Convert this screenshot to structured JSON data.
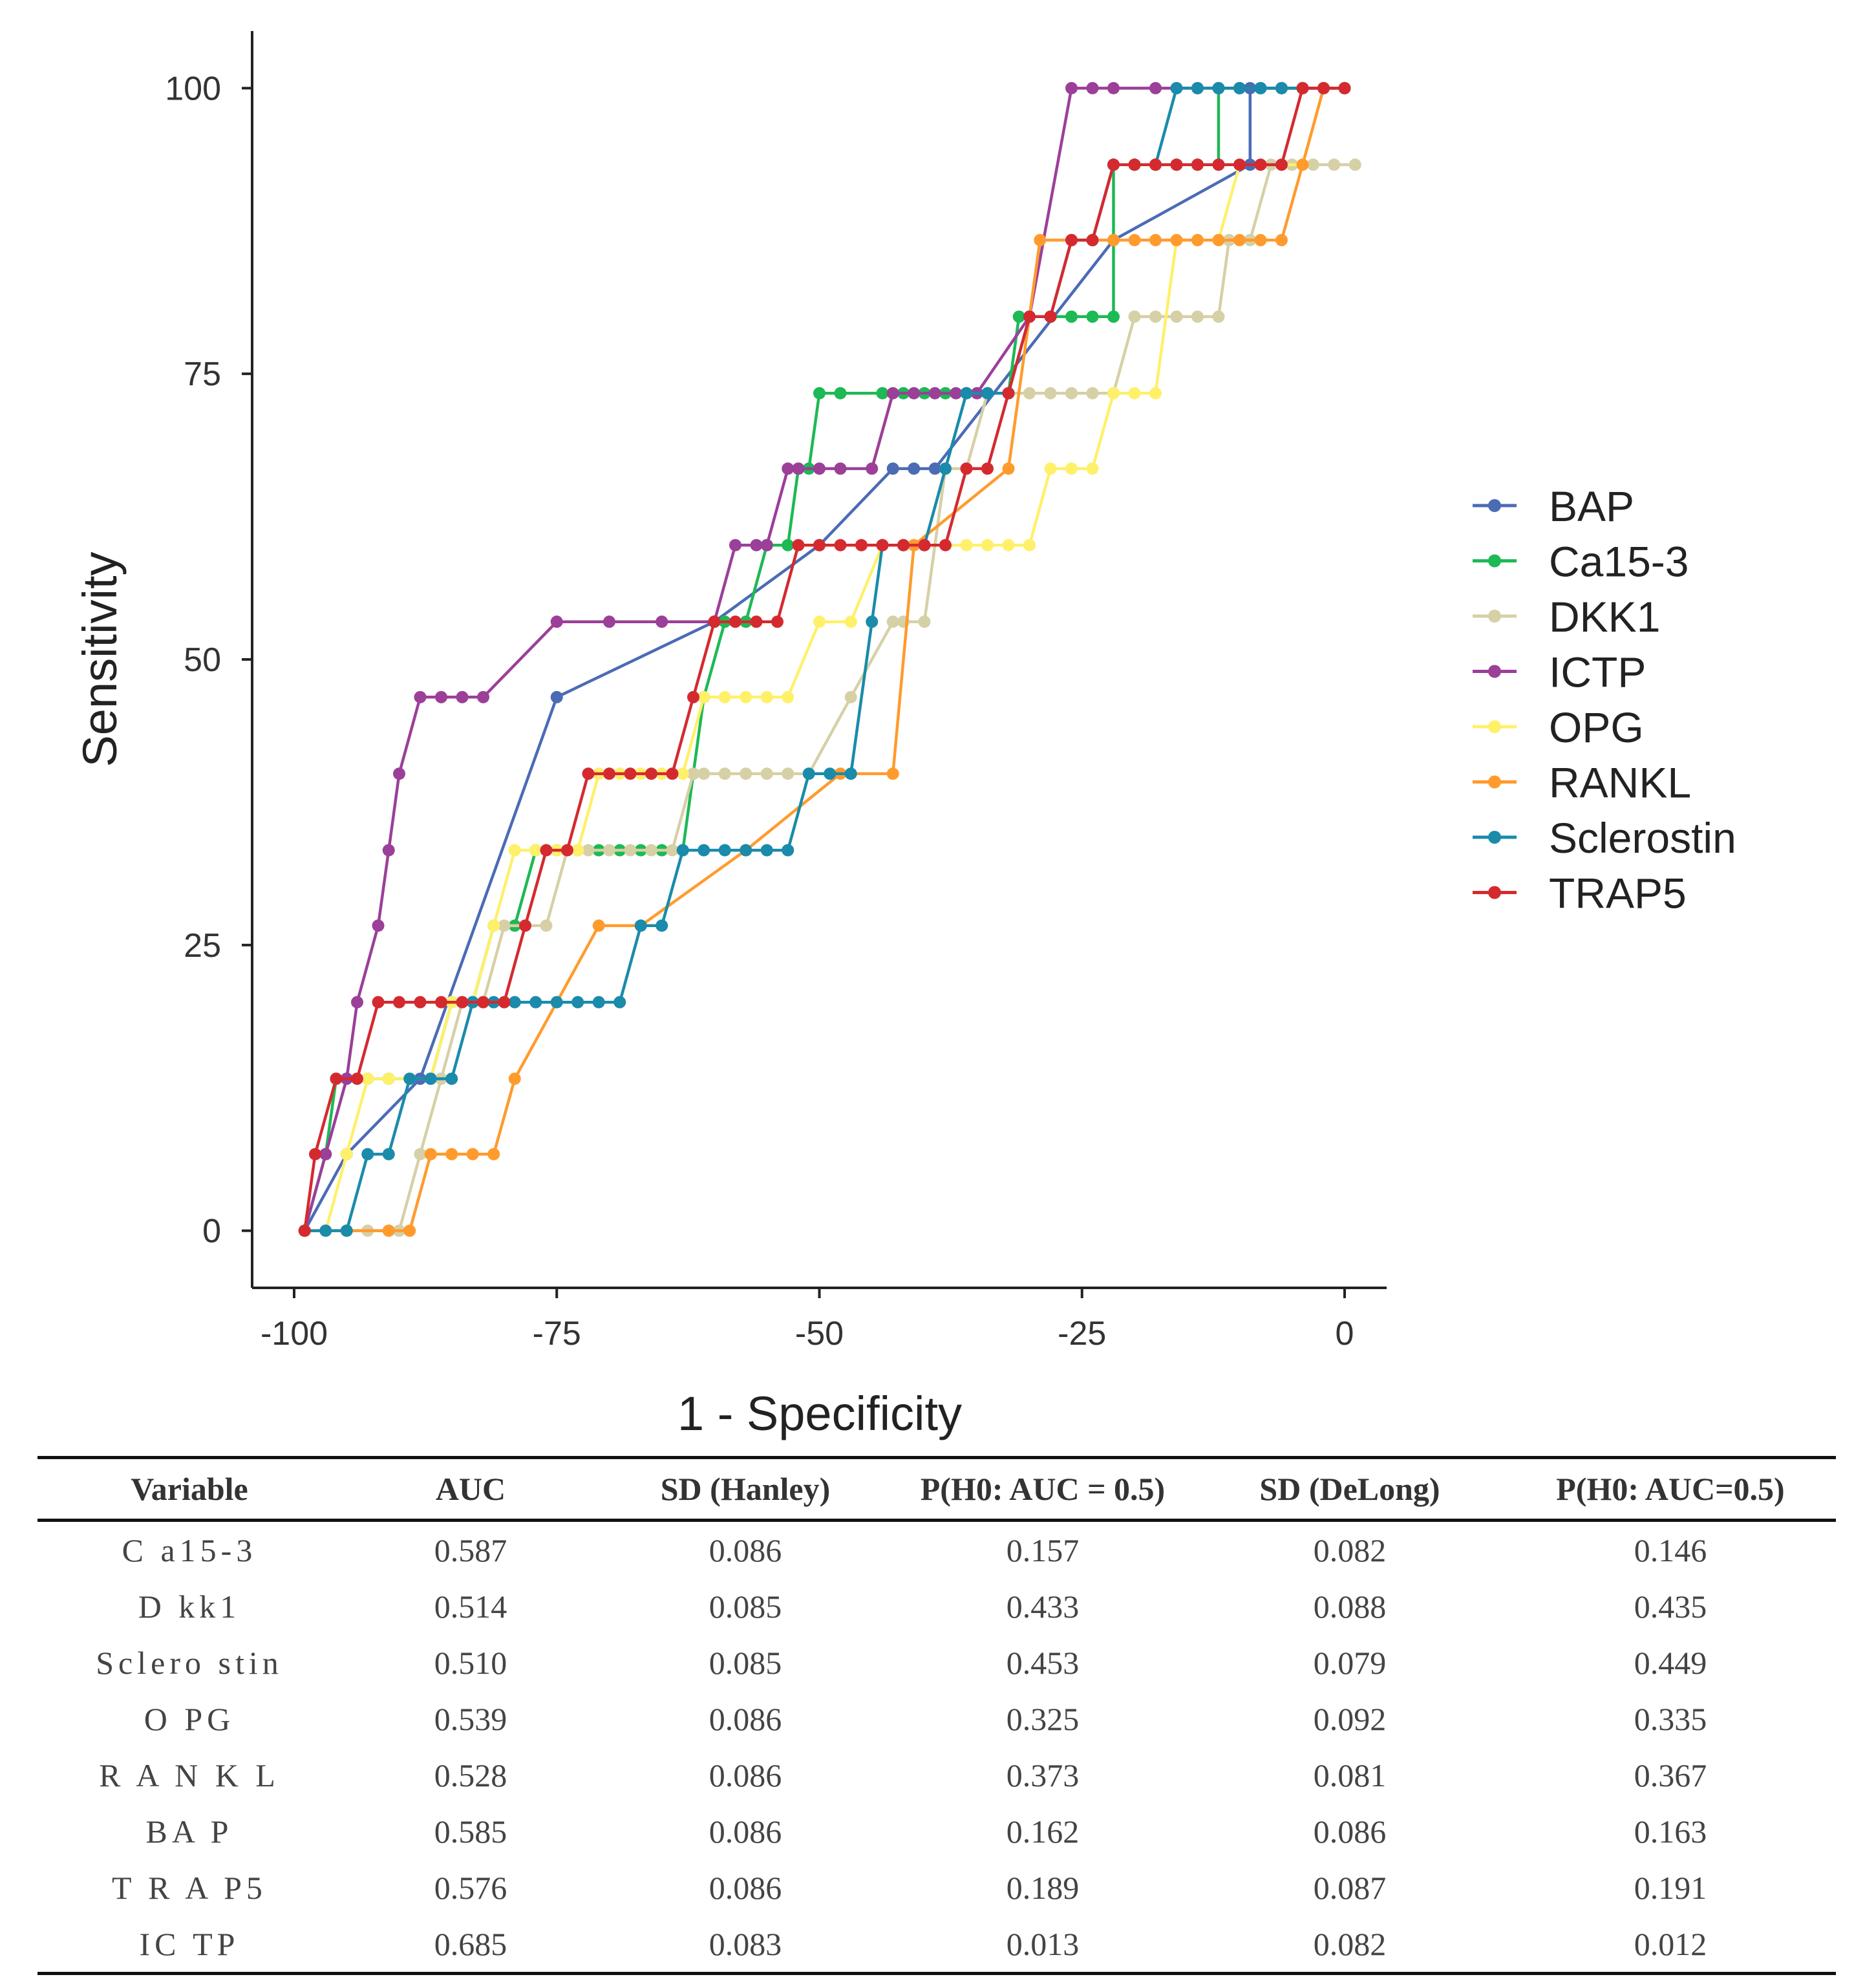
{
  "chart_data": {
    "type": "line",
    "title": "",
    "xlabel": "1 - Specificity",
    "ylabel": "Sensitivity",
    "xlim": [
      -104,
      4
    ],
    "ylim": [
      -5,
      105
    ],
    "x_ticks": [
      -100,
      -75,
      -50,
      -25,
      0
    ],
    "y_ticks": [
      0,
      25,
      50,
      75,
      100
    ],
    "x_tick_labels": [
      "-100",
      "-75",
      "-50",
      "-25",
      "0"
    ],
    "y_tick_labels": [
      "0",
      "25",
      "50",
      "75",
      "100"
    ],
    "grid": false,
    "legend_position": "right",
    "series": [
      {
        "name": "BAP",
        "color": "#4B6BB5",
        "x": [
          -99,
          -95,
          -88,
          -75,
          -60,
          -50,
          -43,
          -41,
          -39,
          -22,
          -9,
          -9,
          0
        ],
        "y": [
          0,
          6.7,
          13.3,
          46.7,
          53.3,
          60,
          66.7,
          66.7,
          66.7,
          86.7,
          93.3,
          100,
          100
        ]
      },
      {
        "name": "Ca15-3",
        "color": "#1DB954",
        "x": [
          -99,
          -97,
          -96,
          -95,
          -93,
          -91,
          -89,
          -87,
          -85,
          -83,
          -81,
          -79,
          -77,
          -75,
          -73,
          -71,
          -69,
          -67,
          -65,
          -63,
          -62,
          -61,
          -59,
          -57,
          -55,
          -53,
          -52,
          -51,
          -50,
          -48,
          -44,
          -42,
          -40,
          -38,
          -36,
          -34,
          -32,
          -31,
          -30,
          -28,
          -26,
          -24,
          -22,
          -22,
          -20,
          -18,
          -16,
          -14,
          -12,
          -12,
          -10,
          -8,
          -6,
          -4,
          -2,
          0
        ],
        "y": [
          0,
          6.7,
          13.3,
          13.3,
          13.3,
          13.3,
          13.3,
          13.3,
          20,
          20,
          26.7,
          26.7,
          33.3,
          33.3,
          33.3,
          33.3,
          33.3,
          33.3,
          33.3,
          33.3,
          40,
          46.7,
          53.3,
          53.3,
          60,
          60,
          66.7,
          66.7,
          73.3,
          73.3,
          73.3,
          73.3,
          73.3,
          73.3,
          73.3,
          73.3,
          73.3,
          80,
          80,
          80,
          80,
          80,
          80,
          93.3,
          93.3,
          93.3,
          93.3,
          93.3,
          93.3,
          100,
          100,
          100,
          100,
          100,
          100,
          100
        ]
      },
      {
        "name": "DKK1",
        "color": "#D6D0A6",
        "x": [
          -99,
          -97,
          -95,
          -93,
          -91,
          -90,
          -88,
          -86,
          -84,
          -82,
          -80,
          -78,
          -76,
          -74,
          -72,
          -70,
          -68,
          -66,
          -64,
          -62,
          -61,
          -59,
          -57,
          -55,
          -53,
          -51,
          -47,
          -43,
          -42,
          -40,
          -38,
          -36,
          -34,
          -32,
          -30,
          -28,
          -26,
          -24,
          -22,
          -20,
          -18,
          -16,
          -14,
          -12,
          -11,
          -9,
          -7,
          -5,
          -3,
          -1,
          1
        ],
        "y": [
          0,
          0,
          0,
          0,
          0,
          0,
          6.7,
          13.3,
          20,
          20,
          26.7,
          26.7,
          26.7,
          33.3,
          33.3,
          33.3,
          33.3,
          33.3,
          33.3,
          40,
          40,
          40,
          40,
          40,
          40,
          40,
          46.7,
          53.3,
          53.3,
          53.3,
          66.7,
          66.7,
          73.3,
          73.3,
          73.3,
          73.3,
          73.3,
          73.3,
          73.3,
          80,
          80,
          80,
          80,
          80,
          86.7,
          86.7,
          93.3,
          93.3,
          93.3,
          93.3,
          93.3
        ]
      },
      {
        "name": "ICTP",
        "color": "#9B3F99",
        "x": [
          -99,
          -97,
          -95,
          -94,
          -92,
          -91,
          -90,
          -88,
          -86,
          -84,
          -82,
          -75,
          -70,
          -65,
          -60,
          -58,
          -56,
          -55,
          -53,
          -52,
          -50,
          -48,
          -45,
          -43,
          -41,
          -39,
          -37,
          -35,
          -30,
          -26,
          -24,
          -22,
          -18,
          -16,
          -14,
          -12,
          -10,
          -8,
          -6,
          -4,
          -2,
          0
        ],
        "y": [
          0,
          6.7,
          13.3,
          20,
          26.7,
          33.3,
          40,
          46.7,
          46.7,
          46.7,
          46.7,
          53.3,
          53.3,
          53.3,
          53.3,
          60,
          60,
          60,
          66.7,
          66.7,
          66.7,
          66.7,
          66.7,
          73.3,
          73.3,
          73.3,
          73.3,
          73.3,
          80,
          100,
          100,
          100,
          100,
          100,
          100,
          100,
          100,
          100,
          100,
          100,
          100,
          100
        ]
      },
      {
        "name": "OPG",
        "color": "#FFF06A",
        "x": [
          -99,
          -97,
          -95,
          -93,
          -91,
          -89,
          -87,
          -85,
          -83,
          -81,
          -79,
          -77,
          -75,
          -73,
          -71,
          -69,
          -67,
          -65,
          -63,
          -61,
          -59,
          -57,
          -55,
          -53,
          -50,
          -47,
          -44,
          -42,
          -40,
          -38,
          -36,
          -34,
          -32,
          -30,
          -28,
          -26,
          -24,
          -22,
          -20,
          -18,
          -16,
          -14,
          -12,
          -10,
          -8,
          -6,
          -4,
          -2,
          0
        ],
        "y": [
          0,
          0,
          6.7,
          13.3,
          13.3,
          13.3,
          13.3,
          20,
          20,
          26.7,
          33.3,
          33.3,
          33.3,
          33.3,
          40,
          40,
          40,
          40,
          40,
          46.7,
          46.7,
          46.7,
          46.7,
          46.7,
          53.3,
          53.3,
          60,
          60,
          60,
          60,
          60,
          60,
          60,
          60,
          66.7,
          66.7,
          66.7,
          73.3,
          73.3,
          73.3,
          86.7,
          86.7,
          86.7,
          93.3,
          93.3,
          93.3,
          93.3,
          100,
          100
        ]
      },
      {
        "name": "RANKL",
        "color": "#FF9B2D",
        "x": [
          -99,
          -95,
          -91,
          -89,
          -87,
          -85,
          -83,
          -81,
          -79,
          -71,
          -67,
          -57,
          -48,
          -43,
          -41,
          -32,
          -29,
          -26,
          -24,
          -22,
          -20,
          -18,
          -16,
          -14,
          -12,
          -10,
          -8,
          -6,
          -4,
          -2,
          0
        ],
        "y": [
          0,
          0,
          0,
          0,
          6.7,
          6.7,
          6.7,
          6.7,
          13.3,
          26.7,
          26.7,
          33.3,
          40,
          40,
          60,
          66.7,
          86.7,
          86.7,
          86.7,
          86.7,
          86.7,
          86.7,
          86.7,
          86.7,
          86.7,
          86.7,
          86.7,
          86.7,
          93.3,
          100,
          100
        ]
      },
      {
        "name": "Sclerostin",
        "color": "#1A8BAA",
        "x": [
          -99,
          -97,
          -95,
          -93,
          -91,
          -89,
          -87,
          -85,
          -83,
          -81,
          -79,
          -77,
          -75,
          -73,
          -71,
          -69,
          -67,
          -65,
          -63,
          -61,
          -59,
          -57,
          -55,
          -53,
          -51,
          -49,
          -47,
          -45,
          -44,
          -42,
          -40,
          -38,
          -36,
          -34,
          -32,
          -30,
          -28,
          -26,
          -24,
          -22,
          -20,
          -18,
          -16,
          -14,
          -12,
          -10,
          -8,
          -6,
          -4,
          -2,
          0
        ],
        "y": [
          0,
          0,
          0,
          6.7,
          6.7,
          13.3,
          13.3,
          13.3,
          20,
          20,
          20,
          20,
          20,
          20,
          20,
          20,
          26.7,
          26.7,
          33.3,
          33.3,
          33.3,
          33.3,
          33.3,
          33.3,
          40,
          40,
          40,
          53.3,
          60,
          60,
          60,
          66.7,
          73.3,
          73.3,
          73.3,
          80,
          80,
          86.7,
          86.7,
          93.3,
          93.3,
          93.3,
          100,
          100,
          100,
          100,
          100,
          100,
          100,
          100,
          100
        ]
      },
      {
        "name": "TRAP5",
        "color": "#D42A2F",
        "x": [
          -99,
          -98,
          -96,
          -94,
          -92,
          -90,
          -88,
          -86,
          -84,
          -82,
          -80,
          -78,
          -76,
          -74,
          -72,
          -70,
          -68,
          -66,
          -64,
          -62,
          -60,
          -58,
          -56,
          -54,
          -52,
          -50,
          -48,
          -46,
          -44,
          -42,
          -40,
          -38,
          -36,
          -34,
          -32,
          -30,
          -28,
          -26,
          -24,
          -22,
          -20,
          -18,
          -16,
          -14,
          -12,
          -10,
          -8,
          -6,
          -4,
          -2,
          0
        ],
        "y": [
          0,
          6.7,
          13.3,
          13.3,
          20,
          20,
          20,
          20,
          20,
          20,
          20,
          26.7,
          33.3,
          33.3,
          40,
          40,
          40,
          40,
          40,
          46.7,
          53.3,
          53.3,
          53.3,
          53.3,
          60,
          60,
          60,
          60,
          60,
          60,
          60,
          60,
          66.7,
          66.7,
          73.3,
          80,
          80,
          86.7,
          86.7,
          93.3,
          93.3,
          93.3,
          93.3,
          93.3,
          93.3,
          93.3,
          93.3,
          93.3,
          100,
          100,
          100
        ]
      }
    ]
  },
  "table": {
    "headers": [
      "Variable",
      "AUC",
      "SD (Hanley)",
      "P(H0: AUC = 0.5)",
      "SD (DeLong)",
      "P(H0: AUC=0.5)"
    ],
    "rows": [
      [
        "C a15-3",
        "0.587",
        "0.086",
        "0.157",
        "0.082",
        "0.146"
      ],
      [
        "D kk1",
        "0.514",
        "0.085",
        "0.433",
        "0.088",
        "0.435"
      ],
      [
        "Sclero stin",
        "0.510",
        "0.085",
        "0.453",
        "0.079",
        "0.449"
      ],
      [
        "O PG",
        "0.539",
        "0.086",
        "0.325",
        "0.092",
        "0.335"
      ],
      [
        "R A N K L",
        "0.528",
        "0.086",
        "0.373",
        "0.081",
        "0.367"
      ],
      [
        "BA P",
        "0.585",
        "0.086",
        "0.162",
        "0.086",
        "0.163"
      ],
      [
        "T R A P5",
        "0.576",
        "0.086",
        "0.189",
        "0.087",
        "0.191"
      ],
      [
        "IC TP",
        "0.685",
        "0.083",
        "0.013",
        "0.082",
        "0.012"
      ]
    ]
  }
}
